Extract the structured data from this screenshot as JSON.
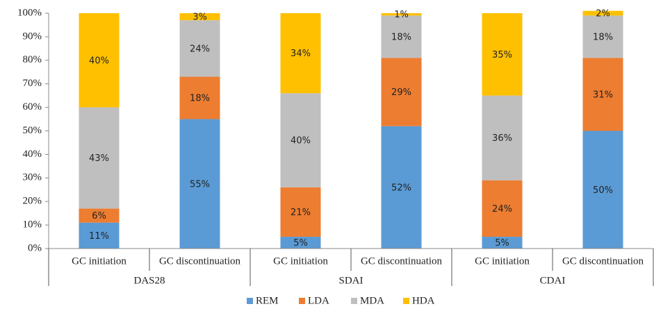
{
  "chart_data": {
    "type": "stacked_bar",
    "categories": [
      "GC initiation",
      "GC discontinuation",
      "GC initiation",
      "GC discontinuation",
      "GC initiation",
      "GC discontinuation"
    ],
    "groups": [
      "DAS28",
      "SDAI",
      "CDAI"
    ],
    "series": [
      {
        "name": "REM",
        "color": "#5b9bd5",
        "values": [
          11,
          55,
          5,
          52,
          5,
          50
        ],
        "value_labels": [
          "11%",
          "55%",
          "5%",
          "52%",
          "5%",
          "50%"
        ]
      },
      {
        "name": "LDA",
        "color": "#ed7d31",
        "values": [
          6,
          18,
          21,
          29,
          24,
          31
        ],
        "value_labels": [
          "6%",
          "18%",
          "21%",
          "29%",
          "24%",
          "31%"
        ]
      },
      {
        "name": "MDA",
        "color": "#bfbfbf",
        "values": [
          43,
          24,
          40,
          18,
          36,
          18
        ],
        "value_labels": [
          "43%",
          "24%",
          "40%",
          "18%",
          "36%",
          "18%"
        ]
      },
      {
        "name": "HDA",
        "color": "#ffc000",
        "values": [
          40,
          3,
          34,
          1,
          35,
          2
        ],
        "value_labels": [
          "40%",
          "3%",
          "34%",
          "1%",
          "35%",
          "2%"
        ]
      }
    ],
    "ylim": [
      0,
      100
    ],
    "yticks": [
      {
        "value": 0,
        "label": "0%"
      },
      {
        "value": 10,
        "label": "10%"
      },
      {
        "value": 20,
        "label": "20%"
      },
      {
        "value": 30,
        "label": "30%"
      },
      {
        "value": 40,
        "label": "40%"
      },
      {
        "value": 50,
        "label": "50%"
      },
      {
        "value": 60,
        "label": "60%"
      },
      {
        "value": 70,
        "label": "70%"
      },
      {
        "value": 80,
        "label": "80%"
      },
      {
        "value": 90,
        "label": "90%"
      },
      {
        "value": 100,
        "label": "100%"
      }
    ],
    "legend": "bottom"
  }
}
